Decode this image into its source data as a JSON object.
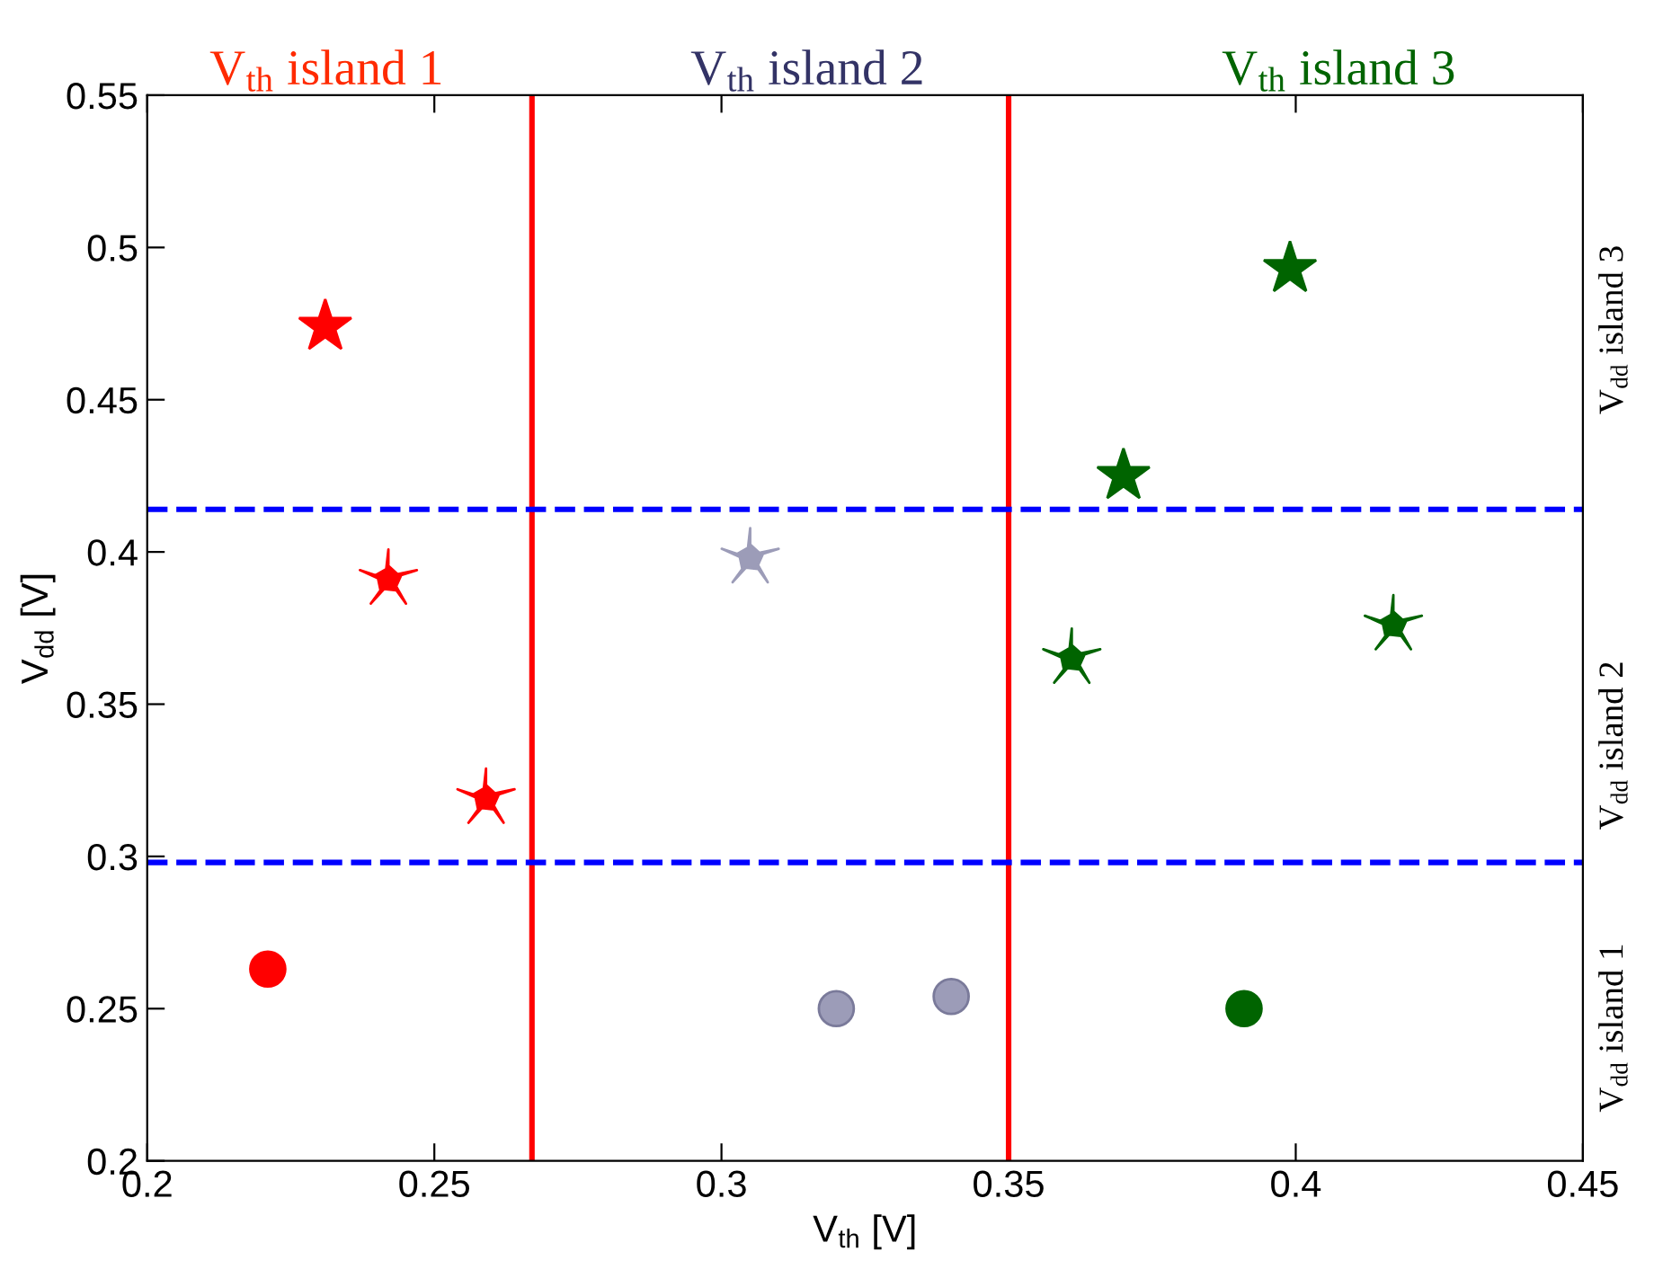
{
  "chart_data": {
    "type": "scatter",
    "xlabel": "V$_{th}$ [V]",
    "ylabel": "V$_{dd}$ [V]",
    "xlim": [
      0.2,
      0.45
    ],
    "ylim": [
      0.2,
      0.55
    ],
    "xticks": [
      0.2,
      0.25,
      0.3,
      0.35,
      0.4,
      0.45
    ],
    "yticks": [
      0.2,
      0.25,
      0.3,
      0.35,
      0.4,
      0.45,
      0.5,
      0.55
    ],
    "grid": false,
    "legend": false,
    "series": [
      {
        "color": "#ff0000",
        "marker": "circle",
        "x": [
          0.221
        ],
        "values": [
          0.263
        ]
      },
      {
        "color": "#ff0000",
        "marker": "star",
        "x": [
          0.231
        ],
        "values": [
          0.474
        ]
      },
      {
        "color": "#ff0000",
        "x": [
          0.242,
          0.259
        ],
        "values": [
          0.391,
          0.319
        ]
      },
      {
        "color": "#9c9cb8",
        "marker": "circle",
        "x": [
          0.32,
          0.34
        ],
        "values": [
          0.25,
          0.254
        ]
      },
      {
        "color": "#9c9cb8",
        "x": [
          0.305
        ],
        "values": [
          0.398
        ]
      },
      {
        "color": "#006400",
        "marker": "circle",
        "x": [
          0.391
        ],
        "values": [
          0.25
        ]
      },
      {
        "color": "#006400",
        "marker": "star",
        "x": [
          0.37,
          0.399
        ],
        "values": [
          0.425,
          0.493
        ]
      },
      {
        "color": "#006400",
        "x": [
          0.361,
          0.417
        ],
        "values": [
          0.365,
          0.376
        ]
      }
    ],
    "ref_lines": [
      {
        "axis": "x",
        "value": 0.267,
        "color": "#ff0000",
        "line_style": "solid"
      },
      {
        "axis": "x",
        "value": 0.35,
        "color": "#ff0000",
        "line_style": "solid"
      },
      {
        "axis": "y",
        "value": 0.298,
        "color": "#0000ff",
        "line_style": "dashed"
      },
      {
        "axis": "y",
        "value": 0.414,
        "color": "#0000ff",
        "line_style": "dashed"
      }
    ],
    "annotations": [
      "V$_{th}$ island 1",
      "V$_{th}$ island 2",
      "V$_{th}$ island 3",
      "V$_{dd}$ island 1",
      "V$_{dd}$ island 2",
      "V$_{dd}$ island 3"
    ]
  }
}
